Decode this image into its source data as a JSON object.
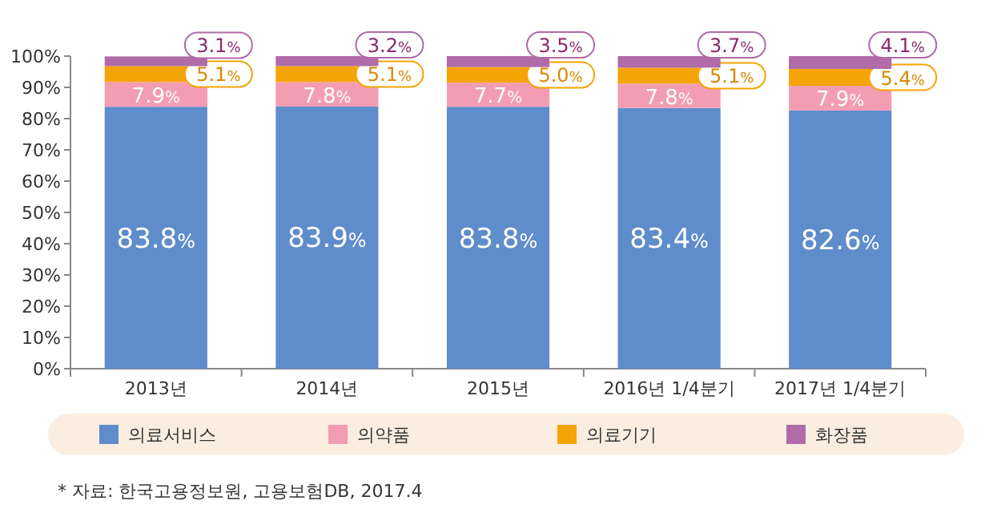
{
  "chart_data": {
    "type": "bar",
    "stacked": true,
    "categories": [
      "2013년",
      "2014년",
      "2015년",
      "2016년 1/4분기",
      "2017년 1/4분기"
    ],
    "series": [
      {
        "name": "의료서비스",
        "color": "#5f8ccb",
        "values": [
          83.8,
          83.9,
          83.8,
          83.4,
          82.6
        ],
        "value_labels": [
          "83.8%",
          "83.9%",
          "83.8%",
          "83.4%",
          "82.6%"
        ]
      },
      {
        "name": "의약품",
        "color": "#f29db2",
        "values": [
          7.9,
          7.8,
          7.7,
          7.8,
          7.9
        ],
        "value_labels": [
          "7.9%",
          "7.8%",
          "7.7%",
          "7.8%",
          "7.9%"
        ]
      },
      {
        "name": "의료기기",
        "color": "#f5a406",
        "values": [
          5.1,
          5.1,
          5.0,
          5.1,
          5.4
        ],
        "value_labels": [
          "5.1%",
          "5.1%",
          "5.0%",
          "5.1%",
          "5.4%"
        ]
      },
      {
        "name": "화장품",
        "color": "#b06ba8",
        "values": [
          3.1,
          3.2,
          3.5,
          3.7,
          4.1
        ],
        "value_labels": [
          "3.1%",
          "3.2%",
          "3.5%",
          "3.7%",
          "4.1%"
        ]
      }
    ],
    "ylim": [
      0,
      100
    ],
    "yticks": [
      {
        "value": 0,
        "label": "0%"
      },
      {
        "value": 10,
        "label": "10%"
      },
      {
        "value": 20,
        "label": "20%"
      },
      {
        "value": 30,
        "label": "30%"
      },
      {
        "value": 40,
        "label": "40%"
      },
      {
        "value": 50,
        "label": "50%"
      },
      {
        "value": 60,
        "label": "60%"
      },
      {
        "value": 70,
        "label": "70%"
      },
      {
        "value": 80,
        "label": "80%"
      },
      {
        "value": 90,
        "label": "90%"
      },
      {
        "value": 100,
        "label": "100%"
      }
    ],
    "legend": "bottom",
    "grid": false,
    "annotations": [
      "* 자료: 한국고용정보원, 고용보험DB, 2017.4"
    ]
  }
}
